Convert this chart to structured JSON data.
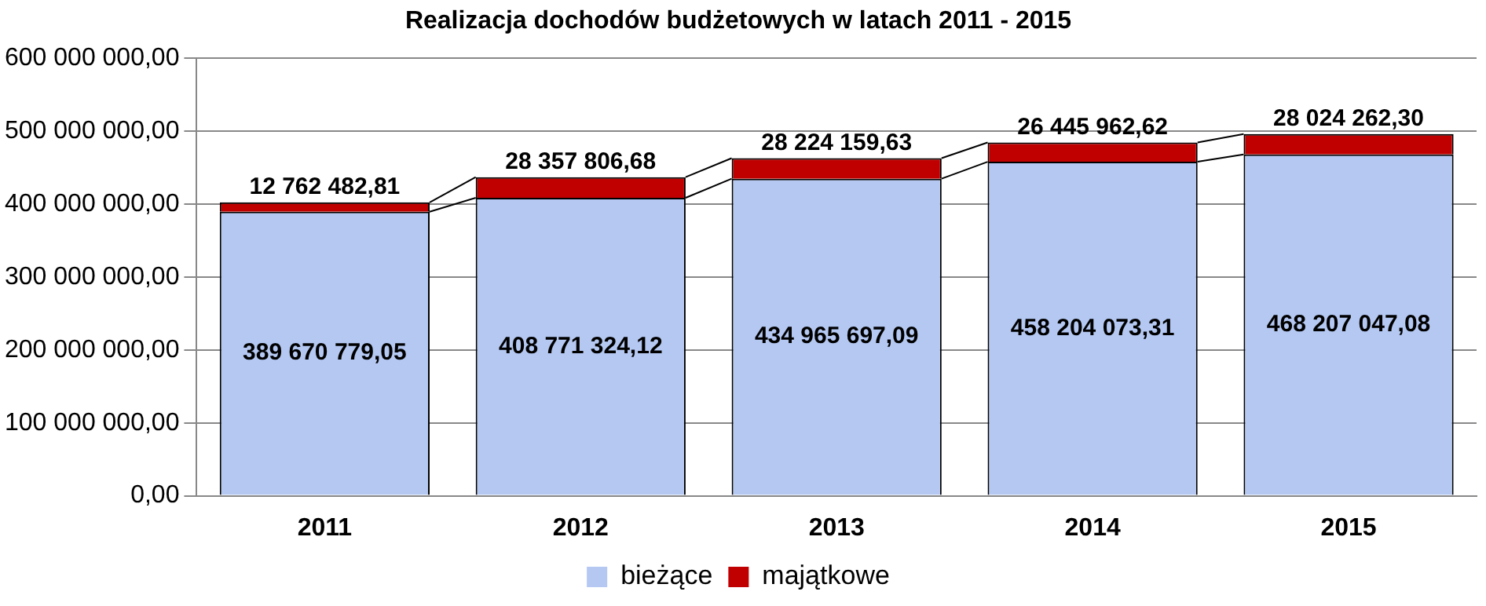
{
  "chart_data": {
    "type": "bar",
    "title": "Realizacja dochodów budżetowych w latach 2011 - 2015",
    "categories": [
      "2011",
      "2012",
      "2013",
      "2014",
      "2015"
    ],
    "stacked": true,
    "series": [
      {
        "name": "bieżące",
        "color": "#b4c8f2",
        "values": [
          389670779.05,
          408771324.12,
          434965697.09,
          458204073.31,
          468207047.08
        ],
        "value_labels": [
          "389 670 779,05",
          "408 771 324,12",
          "434 965 697,09",
          "458 204 073,31",
          "468 207 047,08"
        ]
      },
      {
        "name": "majątkowe",
        "color": "#c00000",
        "values": [
          12762482.81,
          28357806.68,
          28224159.63,
          26445962.62,
          28024262.3
        ],
        "value_labels": [
          "12 762 482,81",
          "28 357 806,68",
          "28 224 159,63",
          "26 445 962,62",
          "28 024 262,30"
        ]
      }
    ],
    "ylim": [
      0,
      600000000
    ],
    "yticks": [
      {
        "value": 0,
        "label": "0,00"
      },
      {
        "value": 100000000,
        "label": "100 000 000,00"
      },
      {
        "value": 200000000,
        "label": "200 000 000,00"
      },
      {
        "value": 300000000,
        "label": "300 000 000,00"
      },
      {
        "value": 400000000,
        "label": "400 000 000,00"
      },
      {
        "value": 500000000,
        "label": "500 000 000,00"
      },
      {
        "value": 600000000,
        "label": "600 000 000,00"
      }
    ],
    "grid": "y",
    "legend": "bottom"
  }
}
